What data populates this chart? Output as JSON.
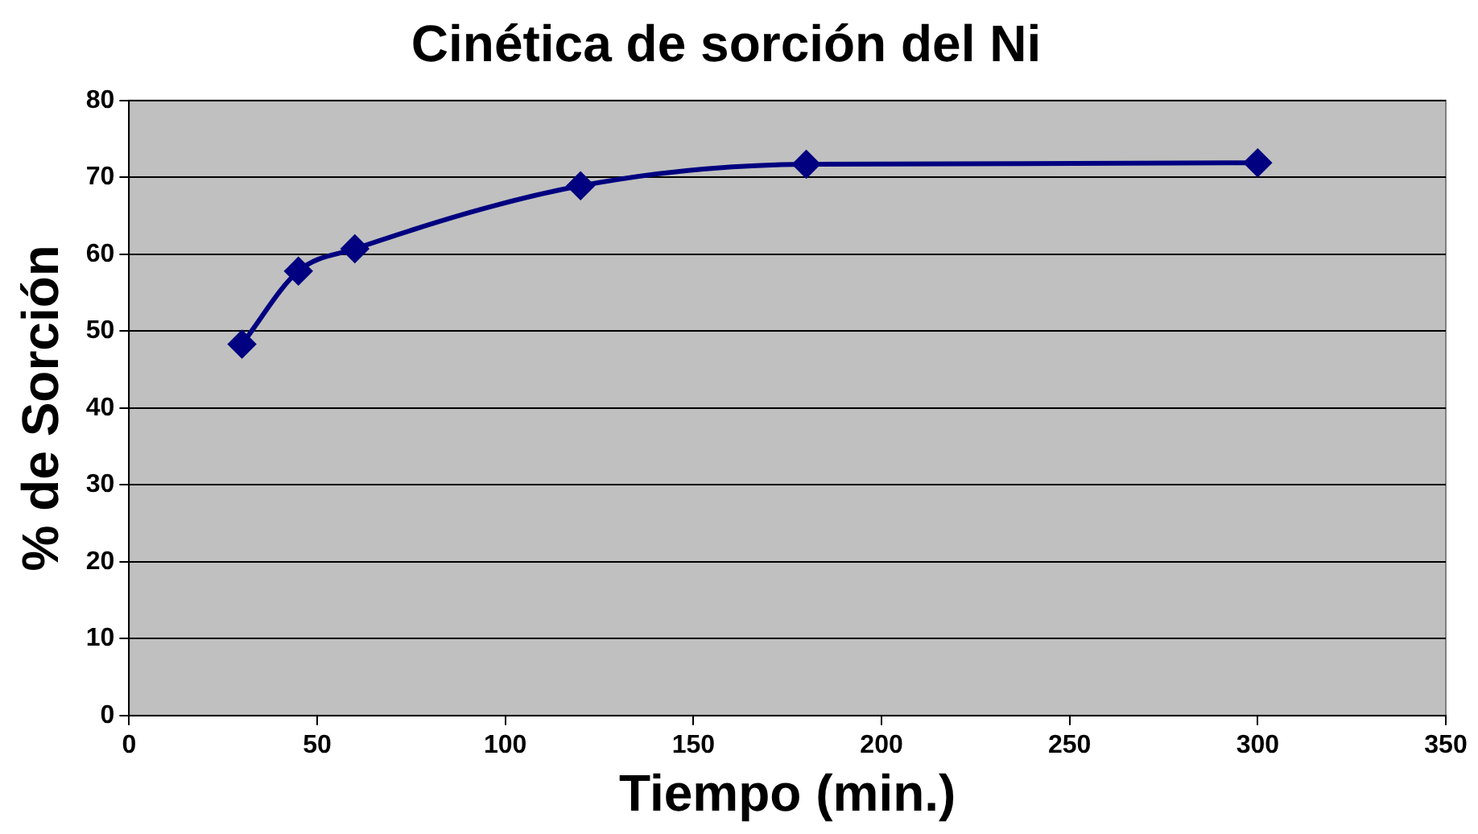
{
  "chart_data": {
    "type": "line",
    "title": "Cinética de sorción del Ni",
    "xlabel": "Tiempo (min.)",
    "ylabel": "% de Sorción",
    "x": [
      30,
      45,
      60,
      120,
      180,
      300
    ],
    "series": [
      {
        "color": "#000080",
        "values": [
          48.3,
          57.8,
          60.7,
          68.9,
          71.7,
          71.9
        ]
      }
    ],
    "xlim": [
      0,
      350
    ],
    "xticks": [
      0,
      50,
      100,
      150,
      200,
      250,
      300,
      350
    ],
    "ylim": [
      0,
      80
    ],
    "yticks": [
      0,
      10,
      20,
      30,
      40,
      50,
      60,
      70,
      80
    ],
    "grid": "y",
    "legend": false,
    "marker": "diamond",
    "line_style": "solid"
  }
}
